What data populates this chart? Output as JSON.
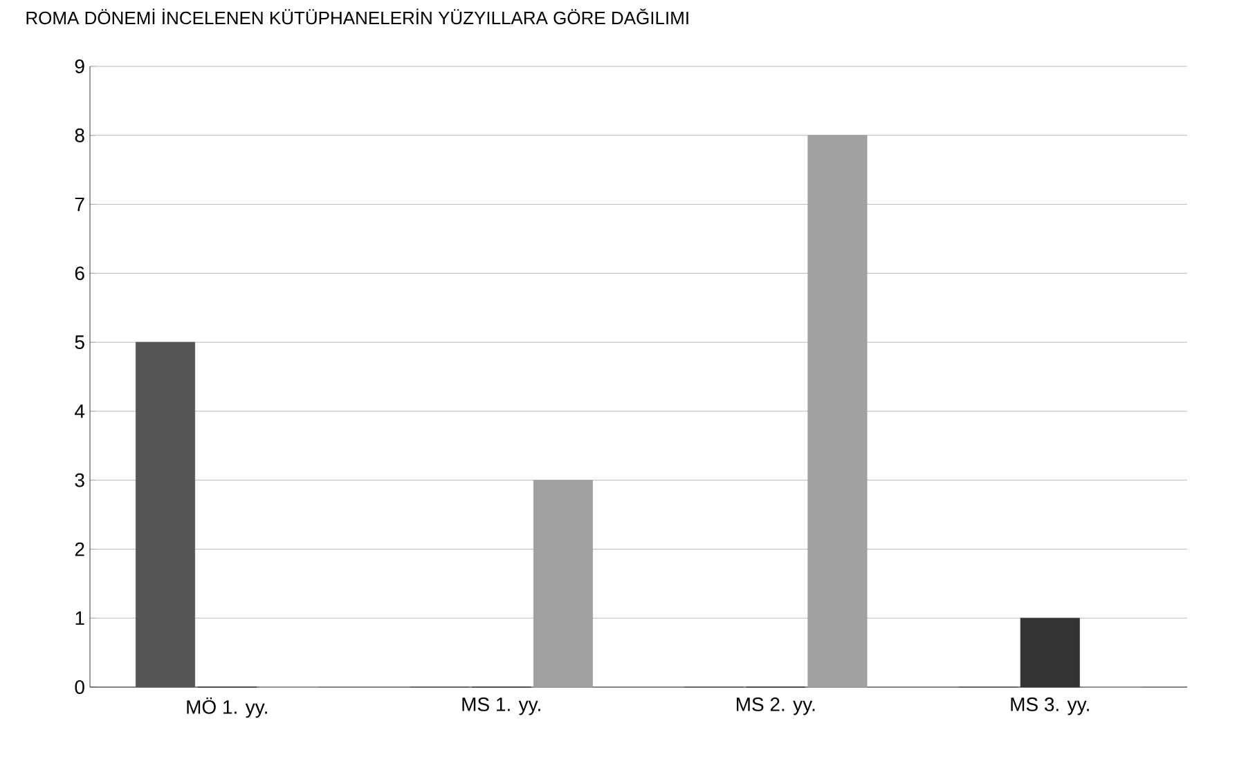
{
  "chart_data": {
    "type": "bar",
    "title": "ROMA DÖNEMİ İNCELENEN KÜTÜPHANELERİN YÜZYILLARA GÖRE DAĞILIMI",
    "categories": [
      "MÖ 1. yy.",
      "MS 1. yy.",
      "MS 2. yy.",
      "MS 3. yy."
    ],
    "series": [
      {
        "color": "#555555",
        "values": [
          5,
          0,
          0,
          0
        ]
      },
      {
        "color": "#333333",
        "values": [
          0,
          0,
          0,
          1
        ]
      },
      {
        "color": "#a0a0a0",
        "values": [
          0,
          3,
          8,
          0
        ]
      }
    ],
    "ylim": [
      0,
      9
    ],
    "yticks": [
      0,
      1,
      2,
      3,
      4,
      5,
      6,
      7,
      8,
      9
    ],
    "grid": "y"
  }
}
